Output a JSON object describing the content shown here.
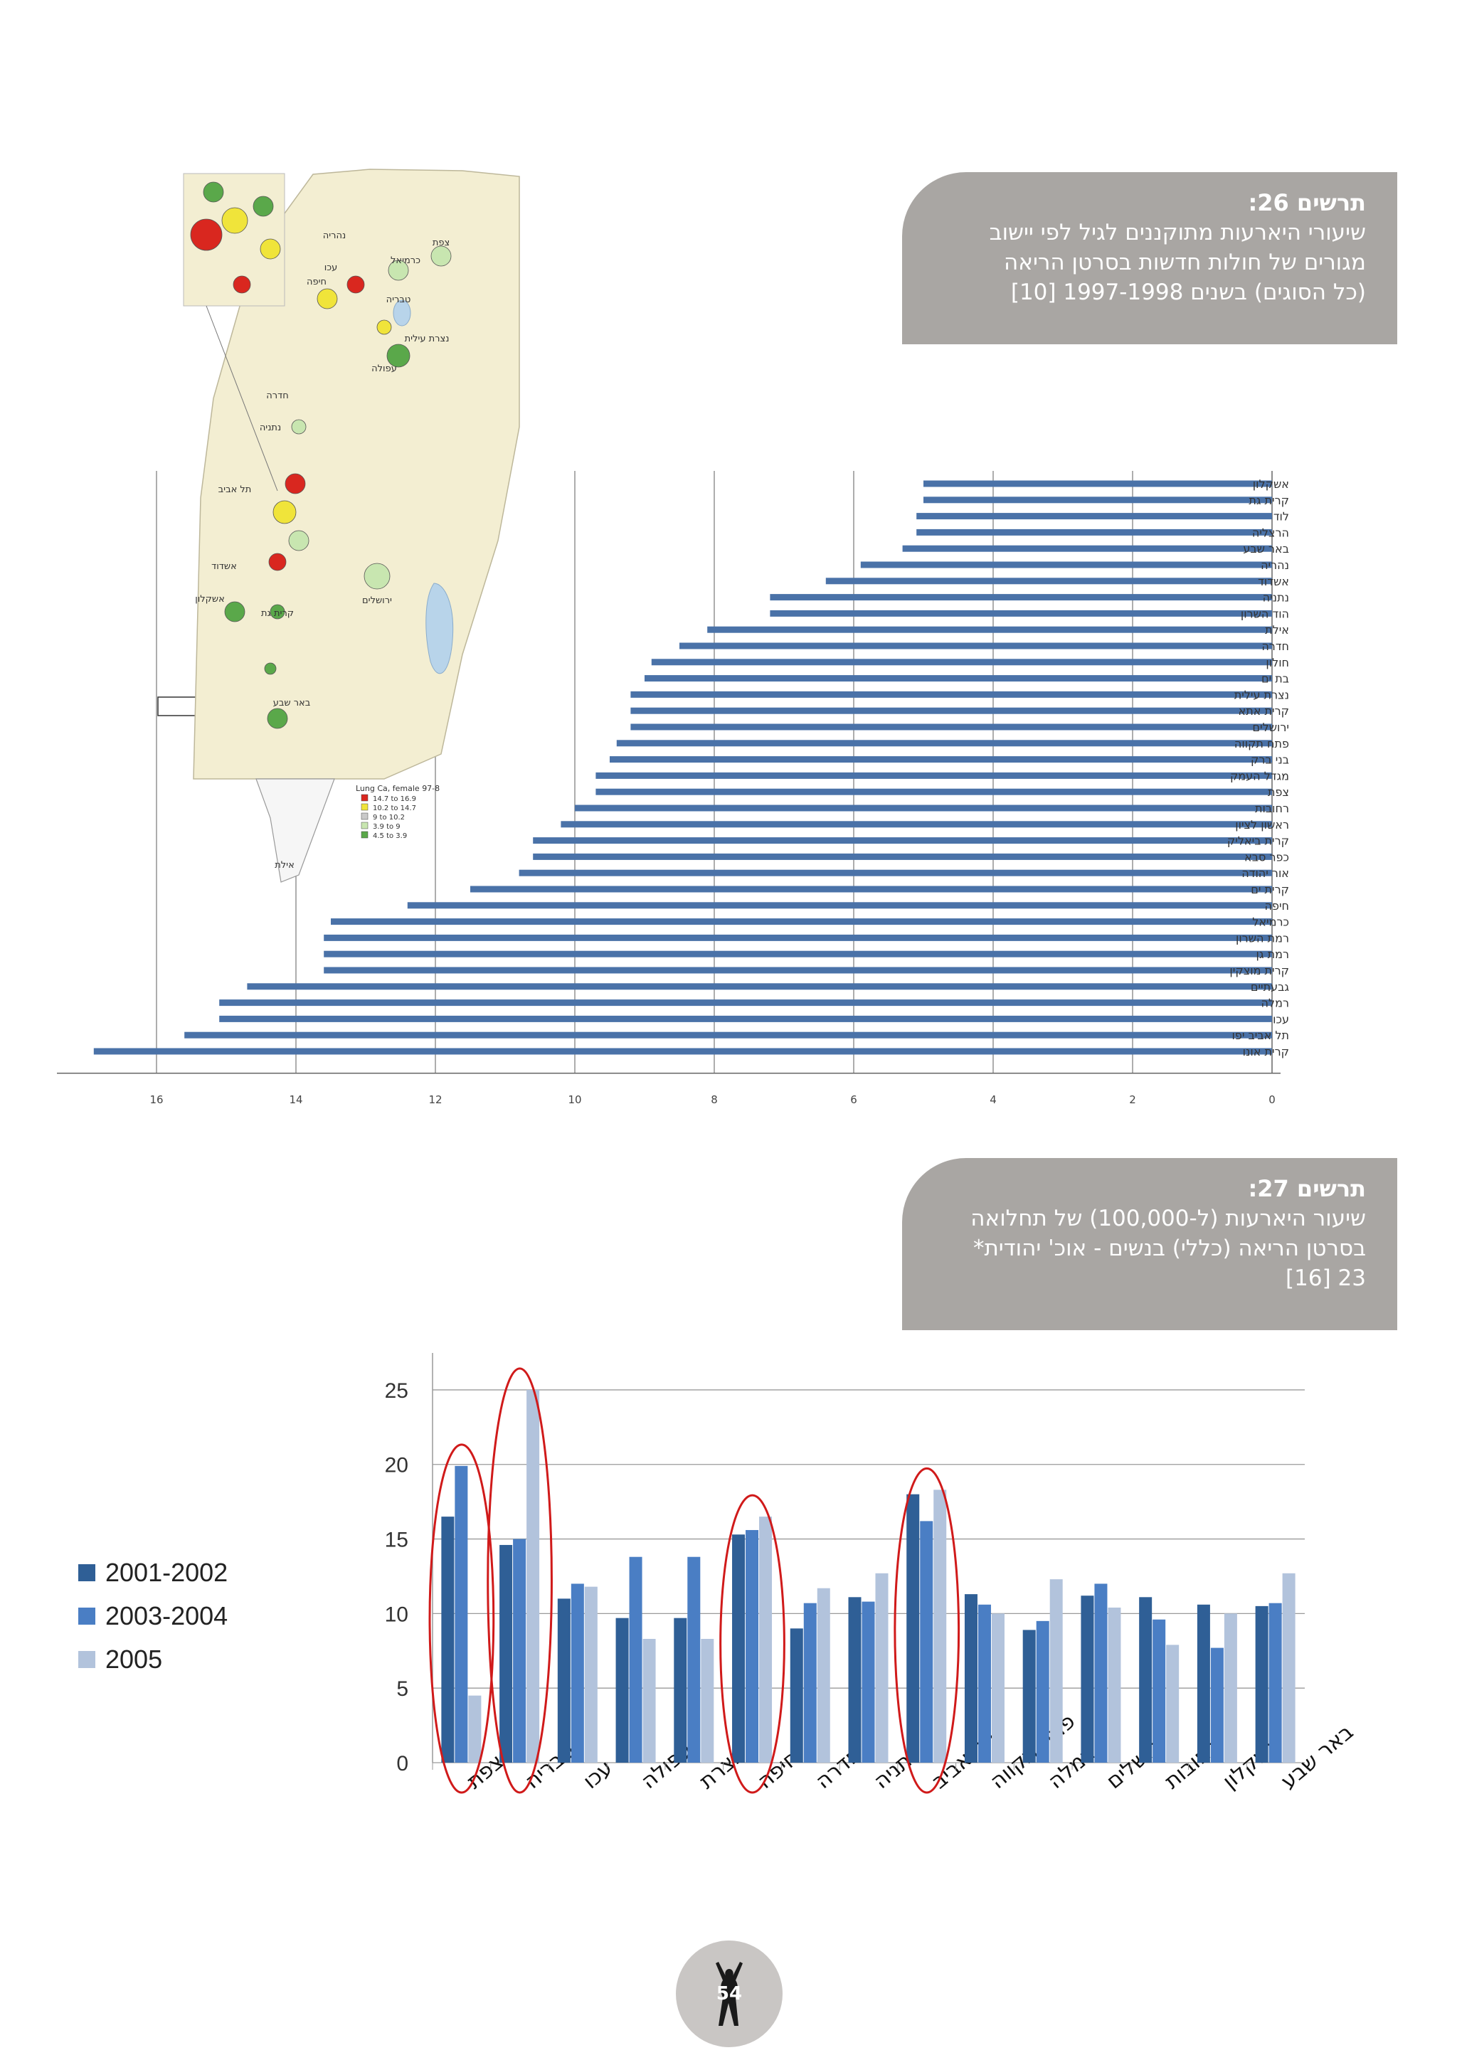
{
  "fig26": {
    "title": "תרשים 26:",
    "lines": [
      "שיעורי היארעות מתוקננים לגיל לפי יישוב",
      "מגורים של חולות חדשות בסרטן הריאה",
      "(כל הסוגים) בשנים 1997-1998 [10]"
    ]
  },
  "fig27": {
    "title": "תרשים 27:",
    "lines": [
      "שיעור היארעות (ל-100,000) של תחלואה",
      "בסרטן הריאה (כללי) בנשים - אוכ' יהודית*",
      "23 [16]"
    ]
  },
  "map": {
    "legend_title": "Lung Ca, female  97-8",
    "legend_rows": [
      "14.7 to 16.9",
      "10.2 to 14.7",
      "9 to 10.2",
      "3.9 to 9",
      "4.5 to 3.9"
    ],
    "colors": [
      "#d9271f",
      "#f0e43a",
      "#c9c9c9",
      "#c8e6b0",
      "#5aa84a"
    ],
    "city_labels": [
      "נהריה",
      "עכו",
      "חיפה",
      "טבריה",
      "צפת",
      "כרמיאל",
      "עפולה",
      "נצרת עילית",
      "חדרה",
      "נתניה",
      "תל אביב",
      "אשדוד",
      "אשקלון",
      "קרית גת",
      "ירושלים",
      "באר שבע",
      "אילת"
    ]
  },
  "page_number": "54",
  "chart_data": [
    {
      "type": "bar",
      "orientation": "horizontal",
      "categories": [
        "אשקלון",
        "קרית גת",
        "לוד",
        "הרצליה",
        "באר שבע",
        "נהריה",
        "אשדוד",
        "נתניה",
        "הוד השרון",
        "אילת",
        "חדרה",
        "חולון",
        "בת ים",
        "נצרת עילית",
        "קרית אתא",
        "ירושלים",
        "פתח תקווה",
        "בני ברק",
        "מגדל העמק",
        "צפת",
        "רחובות",
        "ראשון לציון",
        "קרית ביאליק",
        "כפר סבא",
        "אור יהודה",
        "קרית ים",
        "חיפה",
        "כרמיאל",
        "רמת השרון",
        "רמת גן",
        "קרית מוצקין",
        "גבעתיים",
        "רמלה",
        "עכו",
        "תל אביב יפו",
        "קרית אונו"
      ],
      "values": [
        5.0,
        5.0,
        5.1,
        5.1,
        5.3,
        5.9,
        6.4,
        7.2,
        7.2,
        8.1,
        8.5,
        8.9,
        9.0,
        9.2,
        9.2,
        9.2,
        9.4,
        9.5,
        9.7,
        9.7,
        10.0,
        10.2,
        10.6,
        10.6,
        10.8,
        11.5,
        12.4,
        13.5,
        13.6,
        13.6,
        13.6,
        14.7,
        15.1,
        15.1,
        15.6,
        16.9
      ],
      "xticks": [
        16,
        14,
        12,
        10,
        8,
        6,
        4,
        2,
        0
      ],
      "xlim": [
        0,
        17.5
      ],
      "color": "#4a72a8"
    },
    {
      "type": "bar",
      "categories": [
        "צפת",
        "טבריה",
        "עכו",
        "עפולה",
        "נצרת",
        "חיפה",
        "חדרה",
        "נתניה",
        "תל אביב",
        "פתח תקווה",
        "רמלה",
        "ירושלים",
        "רחובות",
        "אשקלון",
        "באר שבע"
      ],
      "series": [
        {
          "name": "2001-2002",
          "color": "#2f5f96",
          "values": [
            16.5,
            14.6,
            11.0,
            9.7,
            9.7,
            15.3,
            9.0,
            11.1,
            18.0,
            11.3,
            8.9,
            11.2,
            11.1,
            10.6,
            10.5
          ]
        },
        {
          "name": "2003-2004",
          "color": "#4a7ec4",
          "values": [
            19.9,
            15.0,
            12.0,
            13.8,
            13.8,
            15.6,
            10.7,
            10.8,
            16.2,
            10.6,
            9.5,
            12.0,
            9.6,
            7.7,
            10.7
          ]
        },
        {
          "name": "2005",
          "color": "#b2c3dc",
          "values": [
            4.5,
            25.0,
            11.8,
            8.3,
            8.3,
            16.5,
            11.7,
            12.7,
            18.3,
            10.0,
            12.3,
            10.4,
            7.9,
            10.0,
            12.7
          ]
        }
      ],
      "yticks": [
        0,
        5,
        10,
        15,
        20,
        25
      ],
      "ylim": [
        0,
        27
      ],
      "highlighted_categories": [
        "צפת",
        "טבריה",
        "חיפה",
        "תל אביב"
      ],
      "highlight_color": "#d01a1a",
      "legend_position": "left"
    }
  ]
}
